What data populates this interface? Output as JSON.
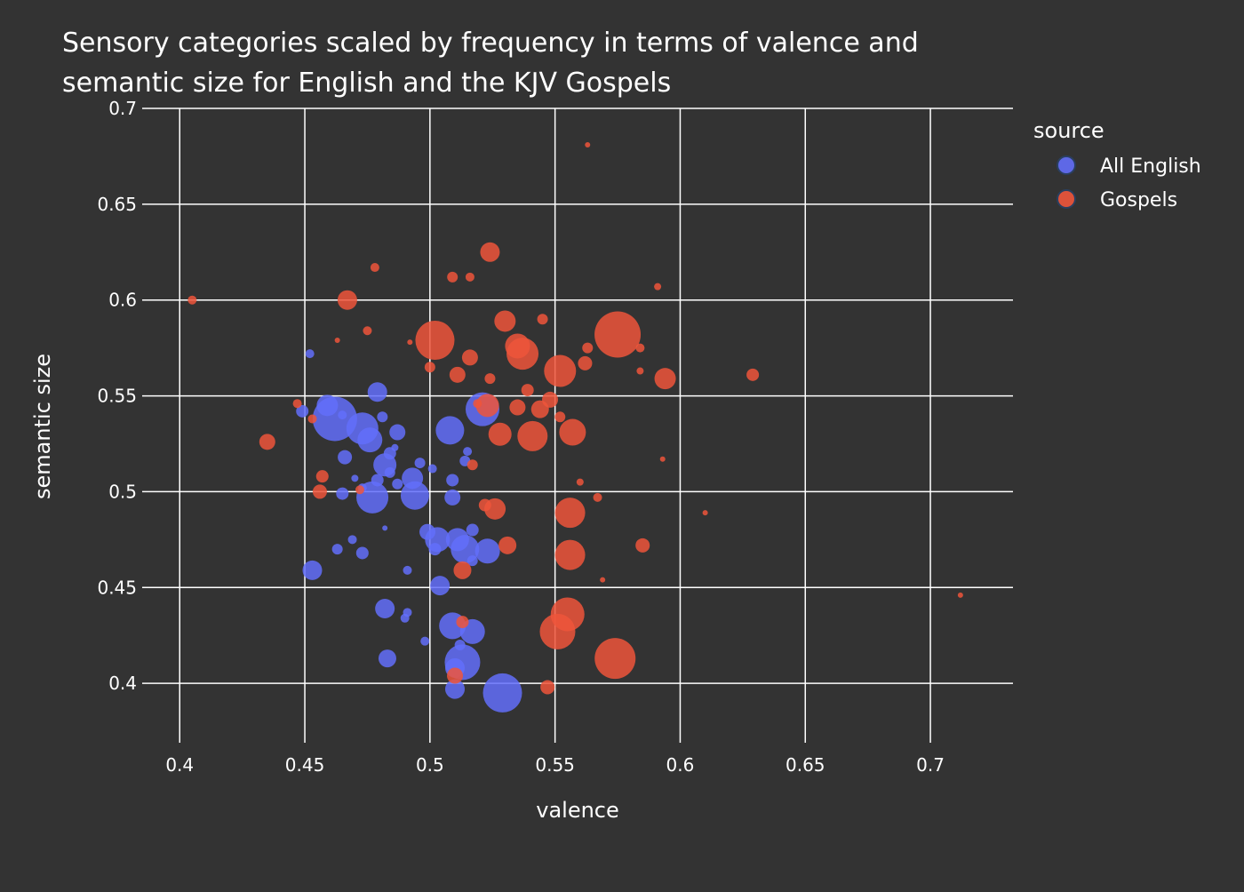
{
  "chart_data": {
    "type": "scatter",
    "title_lines": [
      "Sensory categories scaled by frequency in terms of valence and",
      "semantic size for English and the KJV Gospels"
    ],
    "xlabel": "valence",
    "ylabel": "semantic size",
    "xlim": [
      0.385,
      0.733
    ],
    "ylim": [
      0.369,
      0.7
    ],
    "xticks": [
      0.4,
      0.45,
      0.5,
      0.55,
      0.6,
      0.65,
      0.7
    ],
    "yticks": [
      0.4,
      0.45,
      0.5,
      0.55,
      0.6,
      0.65,
      0.7
    ],
    "grid": true,
    "legend": {
      "title": "source",
      "position": "top-right"
    },
    "series": [
      {
        "name": "All English",
        "color": "#636efa",
        "points": [
          [
            0.452,
            0.572,
            5
          ],
          [
            0.449,
            0.542,
            7
          ],
          [
            0.459,
            0.545,
            12
          ],
          [
            0.462,
            0.538,
            25
          ],
          [
            0.465,
            0.54,
            5
          ],
          [
            0.473,
            0.533,
            18
          ],
          [
            0.476,
            0.527,
            14
          ],
          [
            0.479,
            0.552,
            11
          ],
          [
            0.481,
            0.539,
            6
          ],
          [
            0.487,
            0.531,
            9
          ],
          [
            0.466,
            0.518,
            8
          ],
          [
            0.482,
            0.514,
            13
          ],
          [
            0.484,
            0.52,
            7
          ],
          [
            0.486,
            0.523,
            4
          ],
          [
            0.47,
            0.507,
            4
          ],
          [
            0.479,
            0.506,
            7
          ],
          [
            0.477,
            0.497,
            18
          ],
          [
            0.465,
            0.499,
            7
          ],
          [
            0.473,
            0.502,
            5
          ],
          [
            0.487,
            0.504,
            6
          ],
          [
            0.484,
            0.51,
            6
          ],
          [
            0.496,
            0.515,
            6
          ],
          [
            0.493,
            0.507,
            12
          ],
          [
            0.494,
            0.498,
            16
          ],
          [
            0.501,
            0.512,
            5
          ],
          [
            0.509,
            0.506,
            7
          ],
          [
            0.509,
            0.497,
            9
          ],
          [
            0.508,
            0.532,
            16
          ],
          [
            0.521,
            0.543,
            19
          ],
          [
            0.515,
            0.521,
            5
          ],
          [
            0.514,
            0.516,
            6
          ],
          [
            0.482,
            0.481,
            3
          ],
          [
            0.469,
            0.475,
            5
          ],
          [
            0.473,
            0.468,
            7
          ],
          [
            0.463,
            0.47,
            6
          ],
          [
            0.453,
            0.459,
            11
          ],
          [
            0.491,
            0.459,
            5
          ],
          [
            0.499,
            0.479,
            9
          ],
          [
            0.503,
            0.475,
            14
          ],
          [
            0.502,
            0.47,
            7
          ],
          [
            0.511,
            0.475,
            13
          ],
          [
            0.514,
            0.47,
            16
          ],
          [
            0.517,
            0.48,
            7
          ],
          [
            0.523,
            0.469,
            14
          ],
          [
            0.517,
            0.464,
            6
          ],
          [
            0.504,
            0.451,
            11
          ],
          [
            0.482,
            0.439,
            11
          ],
          [
            0.49,
            0.434,
            5
          ],
          [
            0.491,
            0.437,
            5
          ],
          [
            0.498,
            0.422,
            5
          ],
          [
            0.483,
            0.413,
            10
          ],
          [
            0.509,
            0.43,
            15
          ],
          [
            0.512,
            0.42,
            6
          ],
          [
            0.517,
            0.427,
            14
          ],
          [
            0.513,
            0.411,
            20
          ],
          [
            0.51,
            0.408,
            11
          ],
          [
            0.51,
            0.397,
            11
          ],
          [
            0.529,
            0.395,
            22
          ]
        ]
      },
      {
        "name": "Gospels",
        "color": "#ef553b",
        "points": [
          [
            0.405,
            0.6,
            5
          ],
          [
            0.435,
            0.526,
            9
          ],
          [
            0.447,
            0.546,
            5
          ],
          [
            0.453,
            0.538,
            5
          ],
          [
            0.457,
            0.508,
            7
          ],
          [
            0.456,
            0.5,
            8
          ],
          [
            0.463,
            0.579,
            3
          ],
          [
            0.467,
            0.6,
            11
          ],
          [
            0.475,
            0.584,
            5
          ],
          [
            0.478,
            0.617,
            5
          ],
          [
            0.472,
            0.501,
            5
          ],
          [
            0.492,
            0.578,
            3
          ],
          [
            0.5,
            0.565,
            6
          ],
          [
            0.502,
            0.579,
            22
          ],
          [
            0.509,
            0.612,
            6
          ],
          [
            0.516,
            0.612,
            5
          ],
          [
            0.511,
            0.561,
            9
          ],
          [
            0.516,
            0.57,
            9
          ],
          [
            0.524,
            0.625,
            11
          ],
          [
            0.524,
            0.559,
            6
          ],
          [
            0.53,
            0.589,
            12
          ],
          [
            0.535,
            0.576,
            14
          ],
          [
            0.537,
            0.572,
            18
          ],
          [
            0.545,
            0.59,
            6
          ],
          [
            0.539,
            0.553,
            7
          ],
          [
            0.523,
            0.545,
            13
          ],
          [
            0.519,
            0.546,
            5
          ],
          [
            0.517,
            0.514,
            6
          ],
          [
            0.528,
            0.53,
            13
          ],
          [
            0.535,
            0.544,
            9
          ],
          [
            0.544,
            0.543,
            10
          ],
          [
            0.548,
            0.548,
            9
          ],
          [
            0.541,
            0.529,
            17
          ],
          [
            0.552,
            0.539,
            6
          ],
          [
            0.552,
            0.563,
            18
          ],
          [
            0.557,
            0.531,
            15
          ],
          [
            0.562,
            0.567,
            8
          ],
          [
            0.563,
            0.575,
            6
          ],
          [
            0.563,
            0.681,
            3
          ],
          [
            0.575,
            0.582,
            26
          ],
          [
            0.584,
            0.575,
            5
          ],
          [
            0.584,
            0.563,
            4
          ],
          [
            0.591,
            0.607,
            4
          ],
          [
            0.594,
            0.559,
            12
          ],
          [
            0.593,
            0.517,
            3
          ],
          [
            0.629,
            0.561,
            7
          ],
          [
            0.56,
            0.505,
            4
          ],
          [
            0.567,
            0.497,
            5
          ],
          [
            0.556,
            0.489,
            17
          ],
          [
            0.61,
            0.489,
            3
          ],
          [
            0.526,
            0.491,
            12
          ],
          [
            0.522,
            0.493,
            7
          ],
          [
            0.531,
            0.472,
            10
          ],
          [
            0.556,
            0.467,
            17
          ],
          [
            0.585,
            0.472,
            8
          ],
          [
            0.513,
            0.459,
            10
          ],
          [
            0.555,
            0.436,
            19
          ],
          [
            0.569,
            0.454,
            3
          ],
          [
            0.551,
            0.427,
            20
          ],
          [
            0.574,
            0.413,
            23
          ],
          [
            0.712,
            0.446,
            3
          ],
          [
            0.513,
            0.432,
            7
          ],
          [
            0.51,
            0.404,
            9
          ],
          [
            0.547,
            0.398,
            8
          ]
        ]
      }
    ]
  }
}
